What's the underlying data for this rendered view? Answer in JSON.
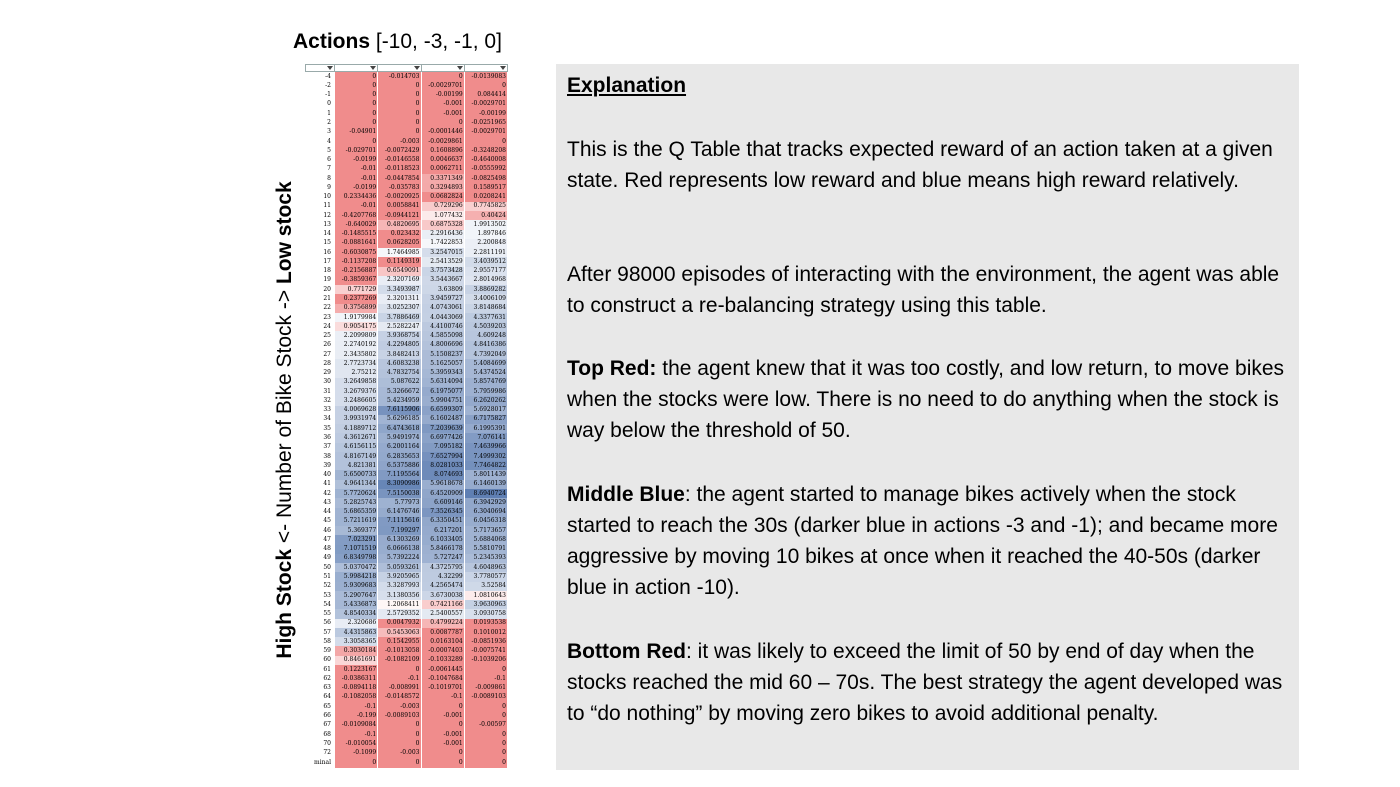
{
  "actions_title": {
    "label": "Actions",
    "values": "[-10, -3, -1, 0]"
  },
  "y_axis": {
    "high_part": "High Stock",
    "middle_part": " <- Number of Bike Stock -> ",
    "low_part": "Low stock"
  },
  "q_table": {
    "columns": [
      "-10",
      "-3",
      "-1",
      "0"
    ],
    "rows": [
      {
        "state": "-4",
        "values": [
          "0",
          "-0.014703",
          "0",
          "-0.0139083"
        ]
      },
      {
        "state": "-2",
        "values": [
          "0",
          "0",
          "-0.0029701",
          "0"
        ]
      },
      {
        "state": "-1",
        "values": [
          "0",
          "0",
          "-0.00199",
          "0.084414"
        ]
      },
      {
        "state": "0",
        "values": [
          "0",
          "0",
          "-0.001",
          "-0.0029701"
        ]
      },
      {
        "state": "1",
        "values": [
          "0",
          "0",
          "-0.001",
          "-0.00199"
        ]
      },
      {
        "state": "2",
        "values": [
          "0",
          "0",
          "0",
          "-0.0251965"
        ]
      },
      {
        "state": "3",
        "values": [
          "-0.04901",
          "0",
          "-0.0001446",
          "-0.0029701"
        ]
      },
      {
        "state": "4",
        "values": [
          "0",
          "-0.003",
          "-0.0029861",
          "0"
        ]
      },
      {
        "state": "5",
        "values": [
          "-0.029701",
          "-0.0072429",
          "0.1608896",
          "-0.3248208"
        ]
      },
      {
        "state": "6",
        "values": [
          "-0.0199",
          "-0.0146558",
          "0.0046637",
          "-0.4640008"
        ]
      },
      {
        "state": "7",
        "values": [
          "-0.01",
          "-0.0118523",
          "0.0062711",
          "-0.0555992"
        ]
      },
      {
        "state": "8",
        "values": [
          "-0.01",
          "-0.0447854",
          "0.3371349",
          "-0.0825498"
        ]
      },
      {
        "state": "9",
        "values": [
          "-0.0199",
          "-0.035783",
          "0.3294893",
          "0.1589517"
        ]
      },
      {
        "state": "10",
        "values": [
          "0.2334436",
          "-0.0020925",
          "0.0682824",
          "0.0208241"
        ]
      },
      {
        "state": "11",
        "values": [
          "-0.01",
          "0.0058841",
          "0.729296",
          "0.7745825"
        ]
      },
      {
        "state": "12",
        "values": [
          "-0.4207768",
          "-0.0944121",
          "1.077432",
          "0.40424"
        ]
      },
      {
        "state": "13",
        "values": [
          "-0.640029",
          "0.4820695",
          "0.6875328",
          "1.9913502"
        ]
      },
      {
        "state": "14",
        "values": [
          "-0.1485515",
          "0.023432",
          "2.2916436",
          "1.897846"
        ]
      },
      {
        "state": "15",
        "values": [
          "-0.0881641",
          "0.0628205",
          "1.7422853",
          "2.200848"
        ]
      },
      {
        "state": "16",
        "values": [
          "-0.6030875",
          "1.7464985",
          "3.2547015",
          "2.2811191"
        ]
      },
      {
        "state": "17",
        "values": [
          "-0.1137208",
          "0.1149319",
          "2.5413529",
          "3.4039512"
        ]
      },
      {
        "state": "18",
        "values": [
          "-0.2156887",
          "0.6549091",
          "3.7573428",
          "2.9557177"
        ]
      },
      {
        "state": "19",
        "values": [
          "-0.3859367",
          "2.3207169",
          "3.5443667",
          "2.8014968"
        ]
      },
      {
        "state": "20",
        "values": [
          "0.771729",
          "3.3493987",
          "3.63809",
          "3.8869282"
        ]
      },
      {
        "state": "21",
        "values": [
          "0.2377269",
          "2.3201311",
          "3.9459727",
          "3.4006109"
        ]
      },
      {
        "state": "22",
        "values": [
          "0.3756899",
          "3.0252307",
          "4.0743061",
          "3.8148684"
        ]
      },
      {
        "state": "23",
        "values": [
          "1.9179984",
          "3.7886469",
          "4.0443069",
          "4.3377631"
        ]
      },
      {
        "state": "24",
        "values": [
          "0.9054175",
          "2.5282247",
          "4.4100746",
          "4.5039203"
        ]
      },
      {
        "state": "25",
        "values": [
          "2.2099809",
          "3.9368754",
          "4.5855098",
          "4.609248"
        ]
      },
      {
        "state": "26",
        "values": [
          "2.2740192",
          "4.2294805",
          "4.8006696",
          "4.8416386"
        ]
      },
      {
        "state": "27",
        "values": [
          "2.3435802",
          "3.8482413",
          "5.1508237",
          "4.7392049"
        ]
      },
      {
        "state": "28",
        "values": [
          "2.7723734",
          "4.6083238",
          "5.1625057",
          "5.4084699"
        ]
      },
      {
        "state": "29",
        "values": [
          "2.75212",
          "4.7832754",
          "5.3959343",
          "5.4374524"
        ]
      },
      {
        "state": "30",
        "values": [
          "3.2649858",
          "5.087622",
          "5.6314094",
          "5.8574769"
        ]
      },
      {
        "state": "31",
        "values": [
          "3.2679376",
          "5.3266672",
          "6.1975077",
          "5.7959986"
        ]
      },
      {
        "state": "32",
        "values": [
          "3.2486605",
          "5.4234959",
          "5.9904751",
          "6.2620262"
        ]
      },
      {
        "state": "33",
        "values": [
          "4.0069628",
          "7.6115906",
          "6.6599307",
          "5.6928017"
        ]
      },
      {
        "state": "34",
        "values": [
          "3.9931974",
          "5.6296185",
          "6.1602487",
          "6.7175827"
        ]
      },
      {
        "state": "35",
        "values": [
          "4.1889712",
          "6.4743618",
          "7.2039639",
          "6.1995391"
        ]
      },
      {
        "state": "36",
        "values": [
          "4.3612671",
          "5.9491974",
          "6.6977426",
          "7.076141"
        ]
      },
      {
        "state": "37",
        "values": [
          "4.6156115",
          "6.2001164",
          "7.095182",
          "7.4639966"
        ]
      },
      {
        "state": "38",
        "values": [
          "4.8167149",
          "6.2835653",
          "7.6527994",
          "7.4999302"
        ]
      },
      {
        "state": "39",
        "values": [
          "4.821381",
          "6.5375886",
          "8.0281033",
          "7.7464822"
        ]
      },
      {
        "state": "40",
        "values": [
          "5.6500733",
          "7.1195564",
          "8.074693",
          "5.8011439"
        ]
      },
      {
        "state": "41",
        "values": [
          "4.9641344",
          "8.3090986",
          "5.9618678",
          "6.1460139"
        ]
      },
      {
        "state": "42",
        "values": [
          "5.7720624",
          "7.5150038",
          "6.4520909",
          "8.6940724"
        ]
      },
      {
        "state": "43",
        "values": [
          "5.2825743",
          "5.77973",
          "6.609146",
          "6.3942929"
        ]
      },
      {
        "state": "44",
        "values": [
          "5.6865359",
          "6.1476746",
          "7.3526345",
          "6.3040694"
        ]
      },
      {
        "state": "45",
        "values": [
          "5.7211619",
          "7.1115616",
          "6.3350451",
          "6.0456318"
        ]
      },
      {
        "state": "46",
        "values": [
          "5.369377",
          "7.199297",
          "6.217201",
          "5.7173657"
        ]
      },
      {
        "state": "47",
        "values": [
          "7.023291",
          "6.1303269",
          "6.1033405",
          "5.6884068"
        ]
      },
      {
        "state": "48",
        "values": [
          "7.1071519",
          "6.0666138",
          "5.8466178",
          "5.5810791"
        ]
      },
      {
        "state": "49",
        "values": [
          "6.8349798",
          "5.7392224",
          "5.727247",
          "5.2345393"
        ]
      },
      {
        "state": "50",
        "values": [
          "5.0370472",
          "5.0593261",
          "4.3725795",
          "4.6048963"
        ]
      },
      {
        "state": "51",
        "values": [
          "5.9984218",
          "3.9205965",
          "4.32299",
          "3.7780577"
        ]
      },
      {
        "state": "52",
        "values": [
          "5.9309683",
          "3.3287993",
          "4.2565474",
          "3.52584"
        ]
      },
      {
        "state": "53",
        "values": [
          "5.2907647",
          "3.1380356",
          "3.6730038",
          "1.0810643"
        ]
      },
      {
        "state": "54",
        "values": [
          "5.4336873",
          "1.2068411",
          "0.7421166",
          "3.9630963"
        ]
      },
      {
        "state": "55",
        "values": [
          "4.8540334",
          "2.5729352",
          "2.5400557",
          "3.0930758"
        ]
      },
      {
        "state": "56",
        "values": [
          "2.320686",
          "0.0047932",
          "0.4799224",
          "0.0193538"
        ]
      },
      {
        "state": "57",
        "values": [
          "4.4315863",
          "0.5453063",
          "0.0087787",
          "0.1010012"
        ]
      },
      {
        "state": "58",
        "values": [
          "3.3058365",
          "0.1542955",
          "0.0163104",
          "-0.0851936"
        ]
      },
      {
        "state": "59",
        "values": [
          "0.3030184",
          "-0.1013058",
          "-0.0007403",
          "-0.0075741"
        ]
      },
      {
        "state": "60",
        "values": [
          "0.8461691",
          "-0.1082109",
          "-0.1033289",
          "-0.1039206"
        ]
      },
      {
        "state": "61",
        "values": [
          "0.1223167",
          "0",
          "-0.0061445",
          "0"
        ]
      },
      {
        "state": "62",
        "values": [
          "-0.0386311",
          "-0.1",
          "-0.1047684",
          "-0.1"
        ]
      },
      {
        "state": "63",
        "values": [
          "-0.0894118",
          "-0.008991",
          "-0.1019701",
          "-0.009861"
        ]
      },
      {
        "state": "64",
        "values": [
          "-0.1082058",
          "-0.0148572",
          "-0.1",
          "-0.0089103"
        ]
      },
      {
        "state": "65",
        "values": [
          "-0.1",
          "-0.003",
          "0",
          "0"
        ]
      },
      {
        "state": "66",
        "values": [
          "-0.199",
          "-0.0089103",
          "-0.001",
          "0"
        ]
      },
      {
        "state": "67",
        "values": [
          "-0.0109084",
          "0",
          "0",
          "-0.00597"
        ]
      },
      {
        "state": "68",
        "values": [
          "-0.1",
          "0",
          "-0.001",
          "0"
        ]
      },
      {
        "state": "70",
        "values": [
          "-0.010054",
          "0",
          "-0.001",
          "0"
        ]
      },
      {
        "state": "72",
        "values": [
          "-0.1099",
          "-0.003",
          "0",
          "0"
        ]
      },
      {
        "state": "minal",
        "values": [
          "0",
          "0",
          "0",
          "0"
        ]
      }
    ]
  },
  "explanation": {
    "heading": "Explanation",
    "para1": "This is the Q Table that tracks expected reward of an action taken at a given state. Red represents low reward and blue means high reward relatively.",
    "para2": "After 98000 episodes of interacting with the environment, the agent was able to construct a re-balancing strategy using this table.",
    "top_red_label": "Top Red:",
    "top_red_text": " the agent knew that it was too costly, and low return, to move bikes when the stocks were low.  There is no need to do anything when the stock is way below the threshold of 50.",
    "middle_blue_label": "Middle Blue",
    "middle_blue_text": ": the agent started to manage bikes actively when the stock started to reach the 30s (darker blue in actions -3 and -1); and became more aggressive by moving 10 bikes at once when it reached the 40-50s (darker blue in action -10).",
    "bottom_red_label": "Bottom Red",
    "bottom_red_text": ": it was likely to exceed the limit of 50 by end of day when the stocks reached the mid 60 – 70s. The best strategy the agent developed was to “do nothing” by moving zero bikes to avoid additional penalty."
  },
  "colors": {
    "low": "#f08c8c",
    "high": "#5f7fb3",
    "panel": "#e8e8e8"
  }
}
